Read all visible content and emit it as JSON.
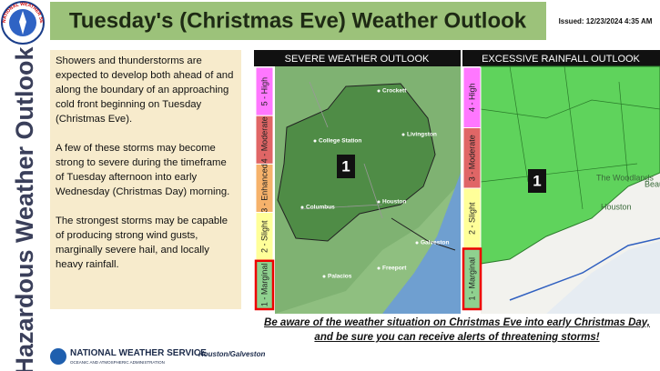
{
  "header": {
    "title": "Tuesday's (Christmas Eve) Weather Outlook",
    "issued": "Issued: 12/23/2024 4:35 AM",
    "logo_text": "NATIONAL WEATHER SERVICE"
  },
  "side_title": "Hazardous Weather Outlook",
  "summary": {
    "paragraphs": [
      "Showers and thunderstorms are expected to develop both ahead of and along the boundary of an approaching cold front beginning on Tuesday (Christmas Eve).",
      "A few of these storms may become strong to severe during the timeframe of Tuesday afternoon into early Wednesday (Christmas Day) morning.",
      "The strongest storms may be capable of producing strong wind gusts, marginally severe hail, and locally heavy rainfall."
    ]
  },
  "panels": [
    {
      "title": "SEVERE WEATHER OUTLOOK",
      "scale": [
        "5 - High",
        "4 - Moderate",
        "3 - Enhanced",
        "2 - Slight",
        "1 - Marginal"
      ],
      "risk_label": "1",
      "places": [
        "Crockett",
        "College Station",
        "Livingston",
        "Houston",
        "Columbus",
        "Galveston",
        "Palacios",
        "Freeport"
      ]
    },
    {
      "title": "EXCESSIVE RAINFALL OUTLOOK",
      "scale": [
        "4 - High",
        "3 - Moderate",
        "2 - Slight",
        "1 - Marginal"
      ],
      "risk_label": "1",
      "places": [
        "The Woodlands",
        "Houston",
        "Beau"
      ]
    }
  ],
  "footer": {
    "message": "Be aware of the weather situation on Christmas Eve into early Christmas Day, and be sure you can receive alerts of threatening storms!",
    "agency": "NATIONAL WEATHER SERVICE",
    "agency_sub": "OCEANIC AND ATMOSPHERIC ADMINISTRATION",
    "office": "Houston/Galveston"
  }
}
